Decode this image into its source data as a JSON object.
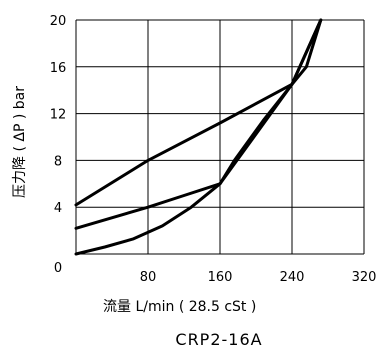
{
  "chart_data": {
    "type": "line",
    "title": "CRP2-16A",
    "xlabel": "流量 L/min ( 28.5 cSt )",
    "ylabel": "压力降 ( ΔP ) bar",
    "xlim": [
      0,
      320
    ],
    "ylim": [
      0,
      20
    ],
    "x_ticks": [
      "0",
      "80",
      "160",
      "240",
      "320"
    ],
    "y_ticks": [
      "4",
      "8",
      "12",
      "16",
      "20"
    ],
    "grid": true,
    "series": [
      {
        "points": [
          [
            0,
            4.2
          ],
          [
            80,
            8.0
          ],
          [
            160,
            11.2
          ],
          [
            240,
            14.5
          ],
          [
            272,
            20
          ]
        ]
      },
      {
        "points": [
          [
            0,
            2.2
          ],
          [
            80,
            4.0
          ],
          [
            120,
            5.0
          ],
          [
            160,
            6.0
          ],
          [
            240,
            14.5
          ],
          [
            272,
            20
          ]
        ]
      },
      {
        "points": [
          [
            0,
            0
          ],
          [
            32,
            0.6
          ],
          [
            64,
            1.3
          ],
          [
            96,
            2.4
          ],
          [
            128,
            4.0
          ],
          [
            160,
            6.0
          ],
          [
            176,
            8.0
          ],
          [
            208,
            11.4
          ],
          [
            240,
            14.5
          ],
          [
            256,
            16.0
          ],
          [
            272,
            20
          ]
        ]
      }
    ]
  }
}
